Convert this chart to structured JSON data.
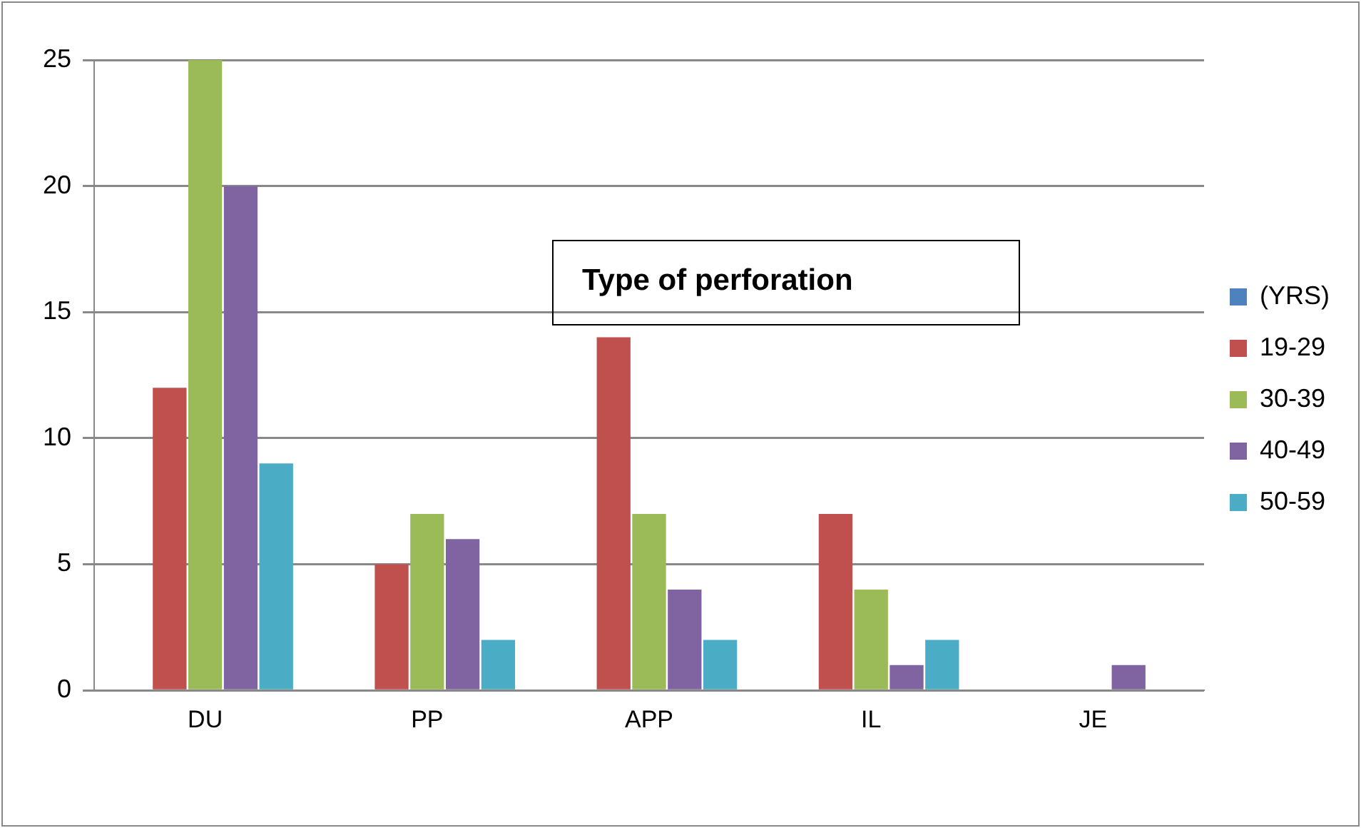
{
  "chart_data": {
    "type": "bar",
    "title": "Type of perforation",
    "categories": [
      "DU",
      "PP",
      "APP",
      "IL",
      "JE"
    ],
    "series": [
      {
        "name": "(YRS)",
        "color": "#4f81bd",
        "values": [
          null,
          null,
          null,
          null,
          null
        ]
      },
      {
        "name": "19-29",
        "color": "#c0504d",
        "values": [
          12,
          5,
          14,
          7,
          0
        ]
      },
      {
        "name": "30-39",
        "color": "#9bbb59",
        "values": [
          25,
          7,
          7,
          4,
          0
        ]
      },
      {
        "name": "40-49",
        "color": "#8064a2",
        "values": [
          20,
          6,
          4,
          1,
          1
        ]
      },
      {
        "name": "50-59",
        "color": "#4bacc6",
        "values": [
          9,
          2,
          2,
          2,
          0
        ]
      }
    ],
    "ylim": [
      0,
      25
    ],
    "yticks": [
      0,
      5,
      10,
      15,
      20,
      25
    ],
    "grid": "y",
    "legend": "right"
  }
}
